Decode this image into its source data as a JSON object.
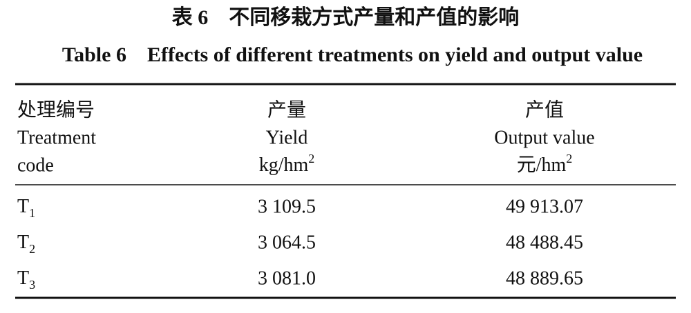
{
  "title_cn": "表 6　不同移栽方式产量和产值的影响",
  "title_en": "Table 6　Effects of different treatments on yield and output value",
  "table": {
    "header": [
      {
        "lines": [
          "处理编号",
          "Treatment",
          "code"
        ]
      },
      {
        "lines": [
          "产量",
          "Yield"
        ],
        "unit": {
          "text": "kg/hm",
          "sup": "2"
        }
      },
      {
        "lines": [
          "产值",
          "Output value"
        ],
        "unit": {
          "text": "元/hm",
          "sup": "2"
        }
      }
    ],
    "rows": [
      [
        {
          "base": "T",
          "sub": "1"
        },
        "3 109.5",
        "49 913.07"
      ],
      [
        {
          "base": "T",
          "sub": "2"
        },
        "3 064.5",
        "48 488.45"
      ],
      [
        {
          "base": "T",
          "sub": "3"
        },
        "3 081.0",
        "48 889.65"
      ]
    ]
  }
}
